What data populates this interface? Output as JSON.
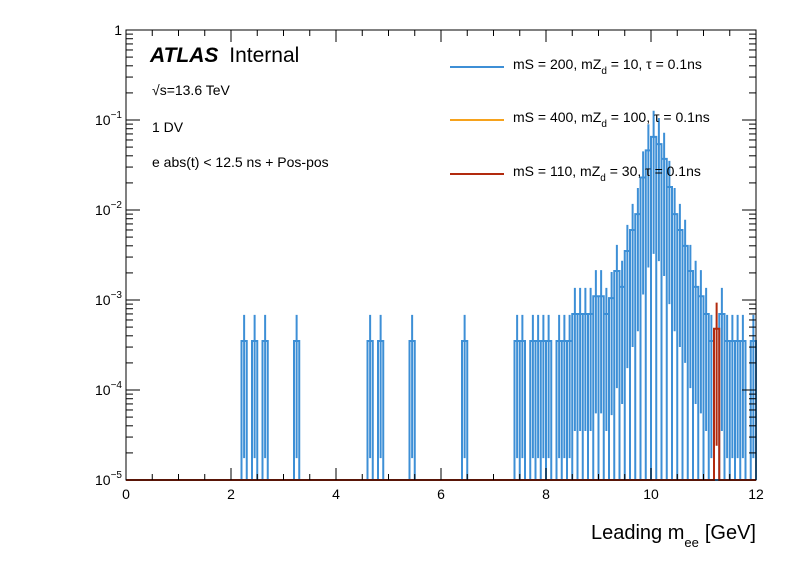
{
  "chart_data": {
    "type": "line",
    "style": "step-histogram",
    "xlabel": "Leading m",
    "xlabel_sub": "ee",
    "xlabel_unit": "[GeV]",
    "xlim": [
      0,
      12
    ],
    "ylim": [
      1e-05,
      1
    ],
    "yscale": "log",
    "x_ticks": [
      "0",
      "2",
      "4",
      "6",
      "8",
      "10",
      "12"
    ],
    "y_ticks": [
      {
        "mant": "1",
        "exp": ""
      },
      {
        "mant": "10",
        "exp": "−1"
      },
      {
        "mant": "10",
        "exp": "−2"
      },
      {
        "mant": "10",
        "exp": "−3"
      },
      {
        "mant": "10",
        "exp": "−4"
      },
      {
        "mant": "10",
        "exp": "−5"
      }
    ],
    "annotations": {
      "atlas": "ATLAS",
      "internal": "Internal",
      "energy_sqrt": "√",
      "energy": "s=13.6 TeV",
      "selection": "1 DV",
      "cut": "e abs(t) < 12.5 ns + Pos-pos"
    },
    "legend": {
      "placement": "top-right",
      "entries": [
        {
          "pre": "mS = 200, mZ",
          "sub": "d",
          "post": " = 10, τ = 0.1ns",
          "color": "#3d8fd6"
        },
        {
          "pre": "mS = 400, mZ",
          "sub": "d",
          "post": " = 100, τ = 0.1ns",
          "color": "#f6a21c"
        },
        {
          "pre": "mS = 110, mZ",
          "sub": "d",
          "post": " = 30, τ = 0.1ns",
          "color": "#b22a0e"
        }
      ]
    },
    "series": [
      {
        "name": "mS = 200, mZd = 10, τ = 0.1ns",
        "color": "#3d8fd6",
        "bins": [
          [
            2.2,
            2.3,
            0.00035
          ],
          [
            2.4,
            2.5,
            0.00035
          ],
          [
            2.6,
            2.7,
            0.00035
          ],
          [
            3.2,
            3.3,
            0.00035
          ],
          [
            4.6,
            4.7,
            0.00035
          ],
          [
            4.8,
            4.9,
            0.00035
          ],
          [
            5.4,
            5.5,
            0.00035
          ],
          [
            6.4,
            6.5,
            0.00035
          ],
          [
            7.4,
            7.5,
            0.00035
          ],
          [
            7.5,
            7.6,
            0.00035
          ],
          [
            7.7,
            7.8,
            0.00035
          ],
          [
            7.8,
            7.9,
            0.00035
          ],
          [
            7.9,
            8.0,
            0.00035
          ],
          [
            8.0,
            8.1,
            0.00035
          ],
          [
            8.2,
            8.3,
            0.00035
          ],
          [
            8.3,
            8.4,
            0.00035
          ],
          [
            8.4,
            8.5,
            0.00035
          ],
          [
            8.5,
            8.6,
            0.0007
          ],
          [
            8.6,
            8.7,
            0.0007
          ],
          [
            8.7,
            8.8,
            0.0007
          ],
          [
            8.8,
            8.9,
            0.0007
          ],
          [
            8.9,
            9.0,
            0.0011
          ],
          [
            9.0,
            9.1,
            0.0011
          ],
          [
            9.1,
            9.2,
            0.0007
          ],
          [
            9.2,
            9.3,
            0.00105
          ],
          [
            9.3,
            9.4,
            0.0021
          ],
          [
            9.4,
            9.5,
            0.0014
          ],
          [
            9.5,
            9.6,
            0.0035
          ],
          [
            9.6,
            9.7,
            0.006
          ],
          [
            9.7,
            9.8,
            0.009
          ],
          [
            9.8,
            9.9,
            0.023
          ],
          [
            9.9,
            10.0,
            0.046
          ],
          [
            10.0,
            10.1,
            0.065
          ],
          [
            10.1,
            10.2,
            0.054
          ],
          [
            10.2,
            10.3,
            0.037
          ],
          [
            10.3,
            10.4,
            0.018
          ],
          [
            10.4,
            10.5,
            0.009
          ],
          [
            10.5,
            10.6,
            0.006
          ],
          [
            10.6,
            10.7,
            0.004
          ],
          [
            10.7,
            10.8,
            0.0021
          ],
          [
            10.8,
            10.9,
            0.0014
          ],
          [
            10.9,
            11.0,
            0.0011
          ],
          [
            11.0,
            11.1,
            0.0007
          ],
          [
            11.1,
            11.2,
            0.00035
          ],
          [
            11.3,
            11.4,
            0.0007
          ],
          [
            11.4,
            11.5,
            0.00035
          ],
          [
            11.5,
            11.6,
            0.00035
          ],
          [
            11.6,
            11.7,
            0.00035
          ],
          [
            11.7,
            11.8,
            0.00035
          ],
          [
            11.9,
            12.0,
            0.00035
          ]
        ],
        "error_rel": 0.95
      },
      {
        "name": "mS = 400, mZd = 100, τ = 0.1ns",
        "color": "#f6a21c",
        "bins": []
      },
      {
        "name": "mS = 110, mZd = 30, τ = 0.1ns",
        "color": "#b22a0e",
        "bins": [
          [
            11.2,
            11.3,
            0.00048
          ]
        ],
        "error_rel": 0.95
      }
    ]
  }
}
